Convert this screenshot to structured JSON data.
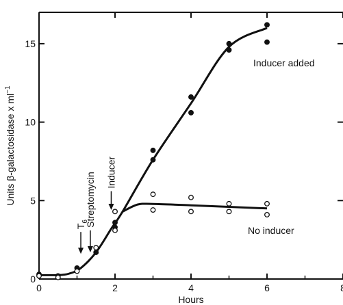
{
  "chart_data": {
    "type": "scatter",
    "title": "",
    "xlabel": "Hours",
    "ylabel_main": "Units β-galactosidase x ml",
    "ylabel_sup": "−1",
    "xlim": [
      0,
      8
    ],
    "ylim": [
      0,
      17
    ],
    "x_ticks": [
      "0",
      "2",
      "4",
      "6",
      "8"
    ],
    "x_tick_values": [
      0,
      2,
      4,
      6,
      8
    ],
    "y_ticks": [
      "0",
      "5",
      "10",
      "15"
    ],
    "y_tick_values": [
      0,
      5,
      10,
      15
    ],
    "grid": false,
    "series": [
      {
        "name": "Inducer added",
        "marker": "filled-circle",
        "points": [
          [
            0,
            0.3
          ],
          [
            0.5,
            0.2
          ],
          [
            1,
            0.7
          ],
          [
            1.5,
            1.7
          ],
          [
            2,
            3.3
          ],
          [
            2,
            3.6
          ],
          [
            3,
            8.2
          ],
          [
            3,
            7.6
          ],
          [
            4,
            11.6
          ],
          [
            4,
            10.6
          ],
          [
            5,
            15.0
          ],
          [
            5,
            14.6
          ],
          [
            6,
            16.2
          ],
          [
            6,
            15.1
          ]
        ],
        "curve": [
          [
            0,
            0.25
          ],
          [
            0.5,
            0.25
          ],
          [
            0.8,
            0.35
          ],
          [
            1.1,
            0.7
          ],
          [
            1.5,
            1.7
          ],
          [
            1.9,
            3.2
          ],
          [
            2.2,
            4.3
          ],
          [
            3,
            7.6
          ],
          [
            4,
            11.2
          ],
          [
            5,
            14.8
          ],
          [
            6,
            16.0
          ]
        ]
      },
      {
        "name": "No inducer",
        "marker": "open-circle",
        "points": [
          [
            0,
            0.2
          ],
          [
            0.5,
            0.1
          ],
          [
            1,
            0.5
          ],
          [
            1.5,
            2.0
          ],
          [
            2,
            3.1
          ],
          [
            2,
            4.3
          ],
          [
            3,
            5.4
          ],
          [
            3,
            4.4
          ],
          [
            4,
            5.2
          ],
          [
            4,
            4.3
          ],
          [
            5,
            4.8
          ],
          [
            5,
            4.3
          ],
          [
            6,
            4.8
          ],
          [
            6,
            4.1
          ]
        ],
        "curve": [
          [
            2.2,
            4.3
          ],
          [
            2.6,
            4.75
          ],
          [
            3,
            4.78
          ],
          [
            4,
            4.7
          ],
          [
            5,
            4.6
          ],
          [
            6,
            4.5
          ]
        ]
      }
    ],
    "annotations": [
      {
        "main": "T",
        "sub": "6",
        "x": 1.1,
        "arrow_from": 3.0,
        "arrow_to": 1.6
      },
      {
        "main": "Streptomycin",
        "sub": "",
        "x": 1.35,
        "arrow_from": 3.1,
        "arrow_to": 1.7
      },
      {
        "main": "Inducer",
        "sub": "",
        "x": 1.9,
        "arrow_from": 5.6,
        "arrow_to": 4.4
      }
    ],
    "series_labels": {
      "inducer_added": "Inducer added",
      "no_inducer": "No inducer"
    }
  }
}
